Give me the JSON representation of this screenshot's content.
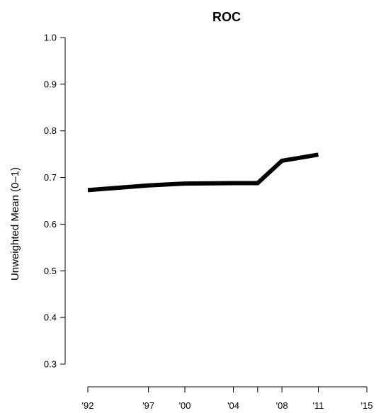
{
  "chart_data": {
    "type": "line",
    "title": "ROC",
    "xlabel": "",
    "ylabel": "Unweighted Mean (0–1)",
    "xlim": [
      1992,
      2015
    ],
    "ylim": [
      0.3,
      1.0
    ],
    "x_ticks": [
      1992,
      1997,
      2000,
      2004,
      2006,
      2008,
      2011,
      2015
    ],
    "x_tick_labels": [
      "'92",
      "'97",
      "'00",
      "'04",
      "",
      "'08",
      "'11",
      "'15"
    ],
    "y_ticks": [
      0.3,
      0.4,
      0.5,
      0.6,
      0.7,
      0.8,
      0.9,
      1.0
    ],
    "y_tick_labels": [
      "0.3",
      "0.4",
      "0.5",
      "0.6",
      "0.7",
      "0.8",
      "0.9",
      "1.0"
    ],
    "grid": false,
    "series": [
      {
        "x": [
          1992,
          1997,
          2000,
          2004,
          2006,
          2008,
          2011
        ],
        "values": [
          0.673,
          0.683,
          0.687,
          0.688,
          0.688,
          0.736,
          0.749
        ],
        "color": "#000000"
      }
    ]
  }
}
